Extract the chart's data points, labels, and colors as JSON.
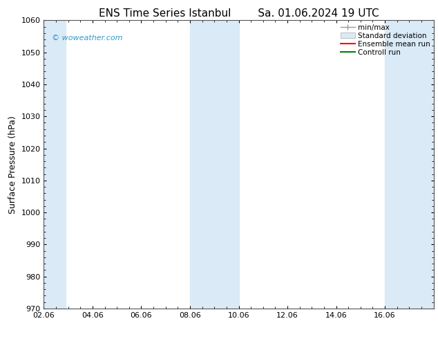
{
  "title_left": "ENS Time Series Istanbul",
  "title_right": "Sa. 01.06.2024 19 UTC",
  "ylabel": "Surface Pressure (hPa)",
  "ylim": [
    970,
    1060
  ],
  "yticks": [
    970,
    980,
    990,
    1000,
    1010,
    1020,
    1030,
    1040,
    1050,
    1060
  ],
  "xtick_labels": [
    "02.06",
    "04.06",
    "06.06",
    "08.06",
    "10.06",
    "12.06",
    "14.06",
    "16.06"
  ],
  "xtick_positions": [
    0,
    2,
    4,
    6,
    8,
    10,
    12,
    14
  ],
  "shaded_bands": [
    {
      "x_start": 0.0,
      "x_end": 0.9
    },
    {
      "x_start": 6.0,
      "x_end": 8.0
    },
    {
      "x_start": 14.0,
      "x_end": 16.0
    }
  ],
  "shade_color": "#daeaf7",
  "shade_alpha": 1.0,
  "watermark_text": "© woweather.com",
  "watermark_color": "#3399cc",
  "legend_labels": [
    "min/max",
    "Standard deviation",
    "Ensemble mean run",
    "Controll run"
  ],
  "background_color": "#ffffff",
  "title_fontsize": 11,
  "label_fontsize": 9,
  "tick_fontsize": 8,
  "legend_fontsize": 7.5,
  "xmin": 0,
  "xmax": 16
}
